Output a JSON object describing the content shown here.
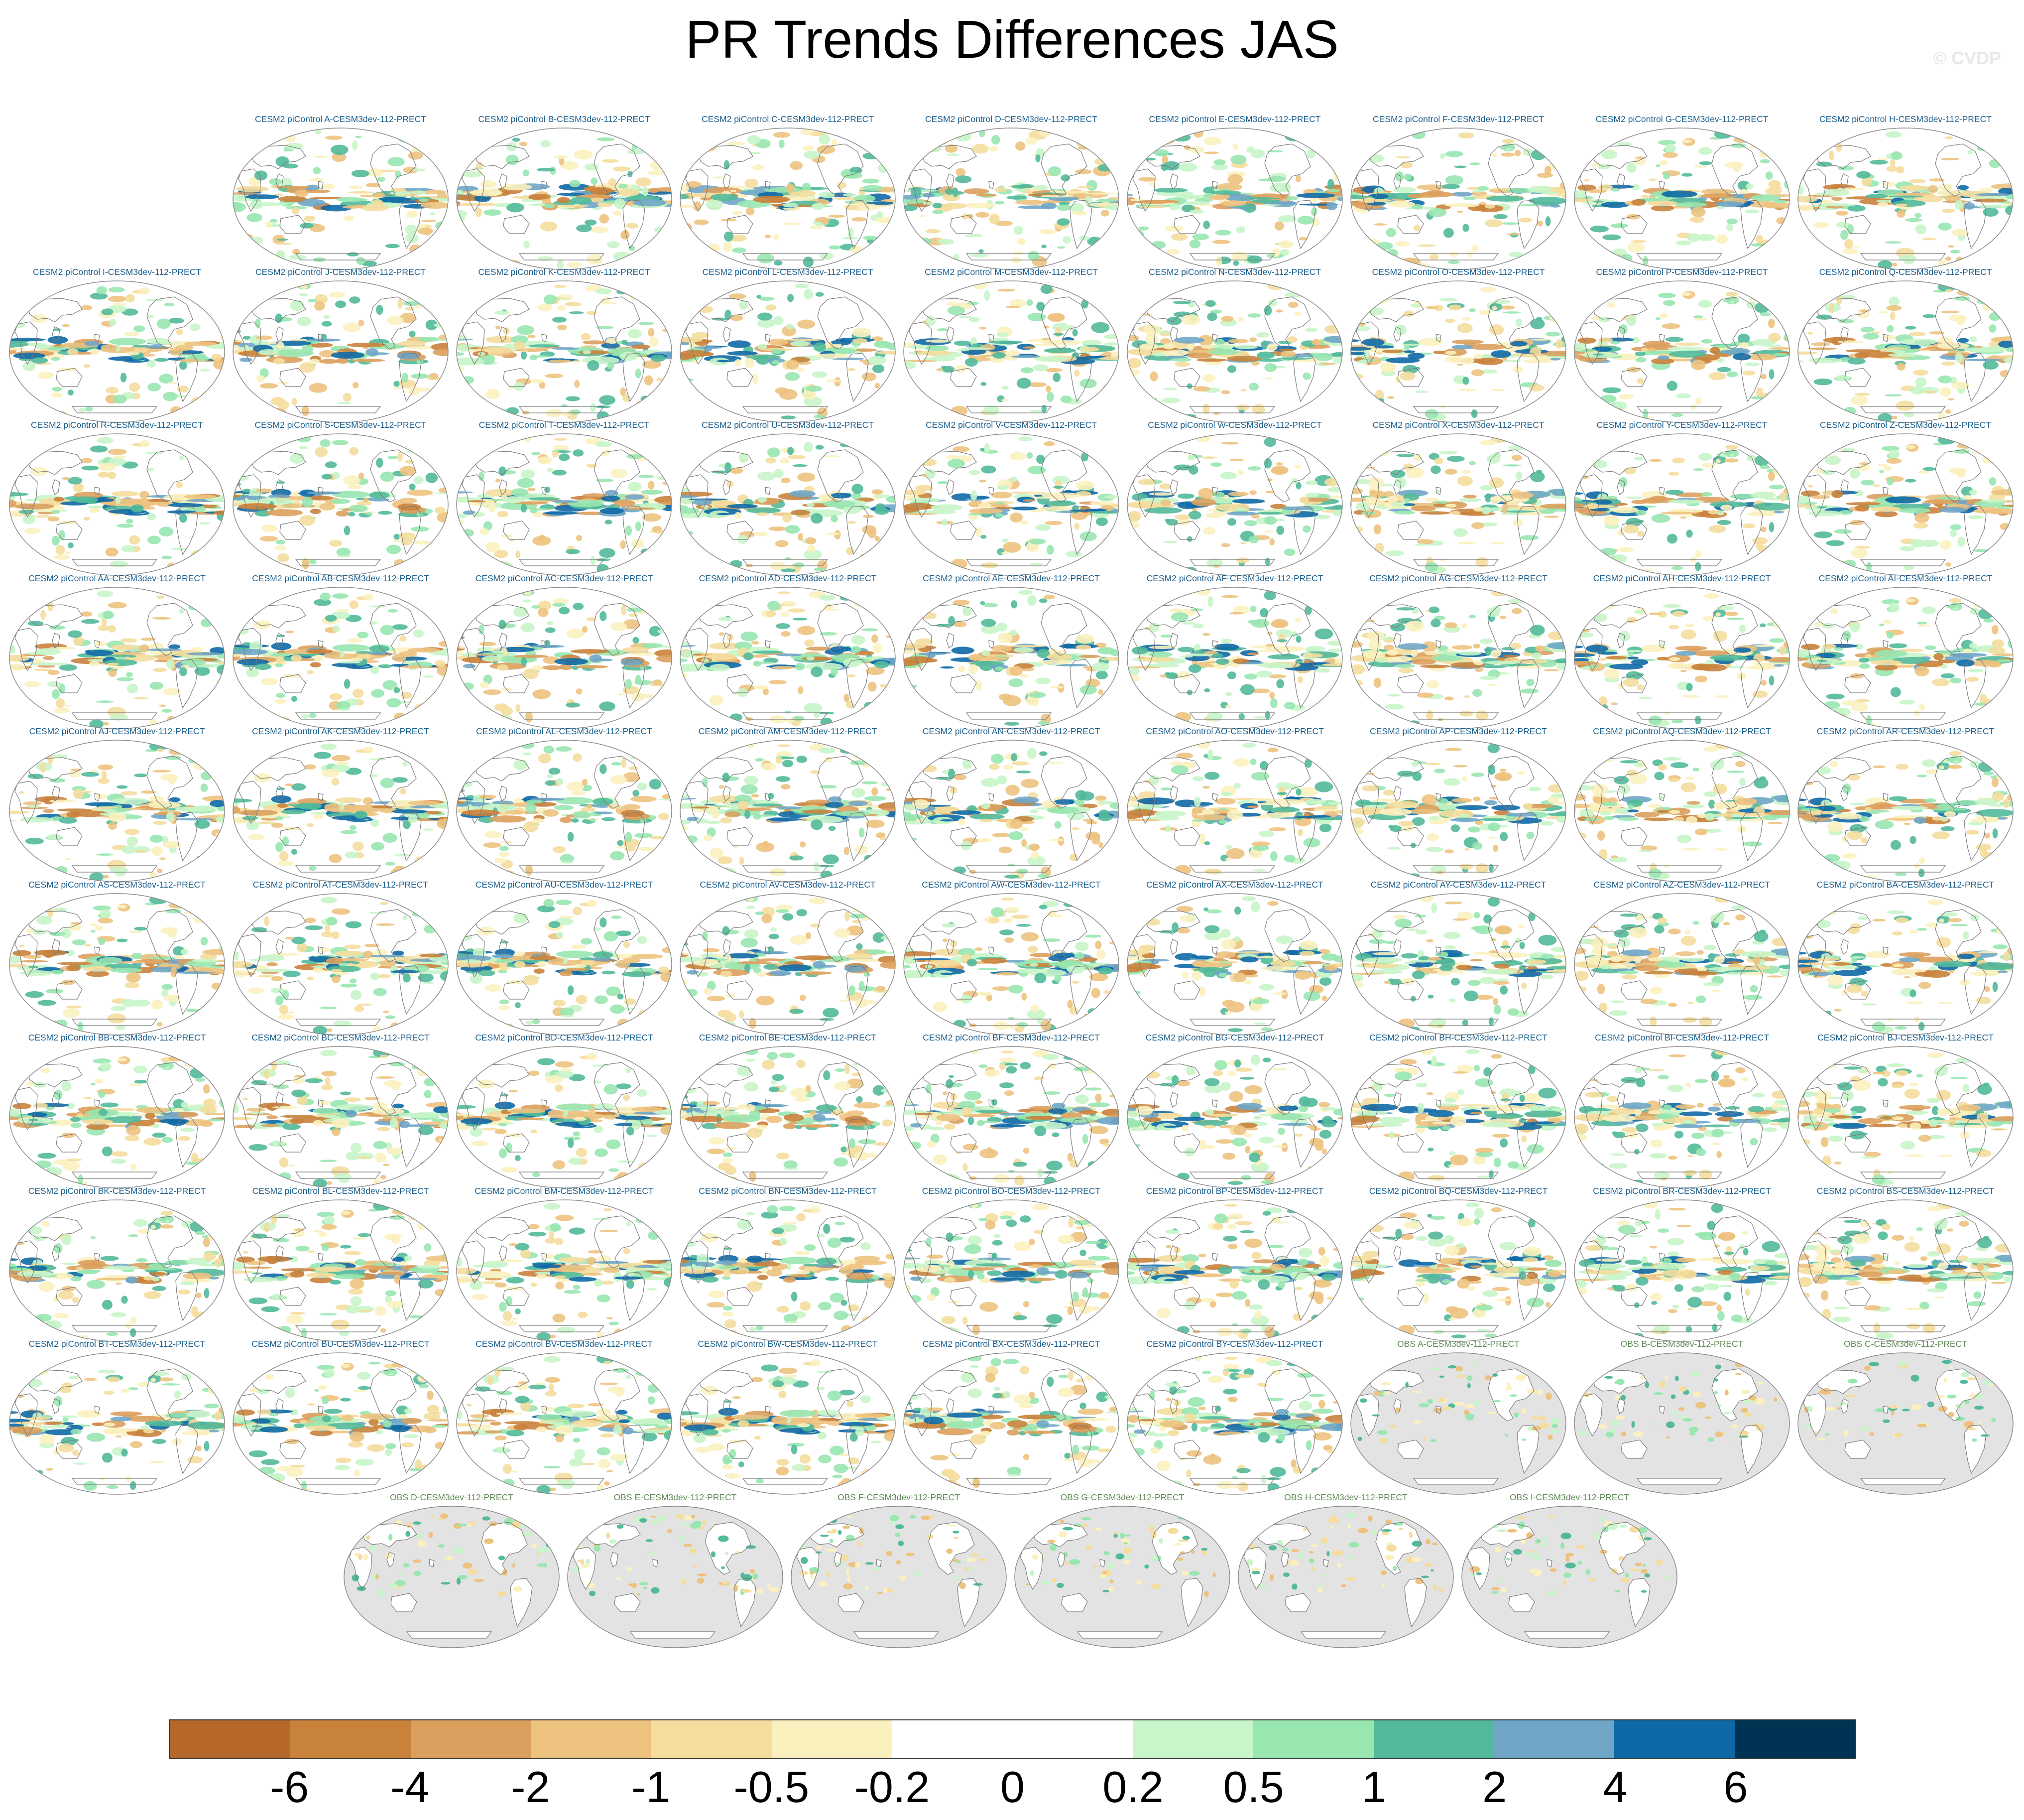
{
  "title": "PR Trends Differences JAS",
  "copyright": "© CVDP",
  "chart_data": {
    "type": "heatmap",
    "title": "PR Trends Differences JAS",
    "description_panels": "Grid of global map panels (Robinson-like projection) showing precipitation trend differences",
    "panels": [
      {
        "label": "CESM2 piControl A-CESM3dev-112-PRECT",
        "kind": "model"
      },
      {
        "label": "CESM2 piControl B-CESM3dev-112-PRECT",
        "kind": "model"
      },
      {
        "label": "CESM2 piControl C-CESM3dev-112-PRECT",
        "kind": "model"
      },
      {
        "label": "CESM2 piControl D-CESM3dev-112-PRECT",
        "kind": "model"
      },
      {
        "label": "CESM2 piControl E-CESM3dev-112-PRECT",
        "kind": "model"
      },
      {
        "label": "CESM2 piControl F-CESM3dev-112-PRECT",
        "kind": "model"
      },
      {
        "label": "CESM2 piControl G-CESM3dev-112-PRECT",
        "kind": "model"
      },
      {
        "label": "CESM2 piControl H-CESM3dev-112-PRECT",
        "kind": "model"
      },
      {
        "label": "CESM2 piControl I-CESM3dev-112-PRECT",
        "kind": "model"
      },
      {
        "label": "CESM2 piControl J-CESM3dev-112-PRECT",
        "kind": "model"
      },
      {
        "label": "CESM2 piControl K-CESM3dev-112-PRECT",
        "kind": "model"
      },
      {
        "label": "CESM2 piControl L-CESM3dev-112-PRECT",
        "kind": "model"
      },
      {
        "label": "CESM2 piControl M-CESM3dev-112-PRECT",
        "kind": "model"
      },
      {
        "label": "CESM2 piControl N-CESM3dev-112-PRECT",
        "kind": "model"
      },
      {
        "label": "CESM2 piControl O-CESM3dev-112-PRECT",
        "kind": "model"
      },
      {
        "label": "CESM2 piControl P-CESM3dev-112-PRECT",
        "kind": "model"
      },
      {
        "label": "CESM2 piControl Q-CESM3dev-112-PRECT",
        "kind": "model"
      },
      {
        "label": "CESM2 piControl R-CESM3dev-112-PRECT",
        "kind": "model"
      },
      {
        "label": "CESM2 piControl S-CESM3dev-112-PRECT",
        "kind": "model"
      },
      {
        "label": "CESM2 piControl T-CESM3dev-112-PRECT",
        "kind": "model"
      },
      {
        "label": "CESM2 piControl U-CESM3dev-112-PRECT",
        "kind": "model"
      },
      {
        "label": "CESM2 piControl V-CESM3dev-112-PRECT",
        "kind": "model"
      },
      {
        "label": "CESM2 piControl W-CESM3dev-112-PRECT",
        "kind": "model"
      },
      {
        "label": "CESM2 piControl X-CESM3dev-112-PRECT",
        "kind": "model"
      },
      {
        "label": "CESM2 piControl Y-CESM3dev-112-PRECT",
        "kind": "model"
      },
      {
        "label": "CESM2 piControl Z-CESM3dev-112-PRECT",
        "kind": "model"
      },
      {
        "label": "CESM2 piControl AA-CESM3dev-112-PRECT",
        "kind": "model"
      },
      {
        "label": "CESM2 piControl AB-CESM3dev-112-PRECT",
        "kind": "model"
      },
      {
        "label": "CESM2 piControl AC-CESM3dev-112-PRECT",
        "kind": "model"
      },
      {
        "label": "CESM2 piControl AD-CESM3dev-112-PRECT",
        "kind": "model"
      },
      {
        "label": "CESM2 piControl AE-CESM3dev-112-PRECT",
        "kind": "model"
      },
      {
        "label": "CESM2 piControl AF-CESM3dev-112-PRECT",
        "kind": "model"
      },
      {
        "label": "CESM2 piControl AG-CESM3dev-112-PRECT",
        "kind": "model"
      },
      {
        "label": "CESM2 piControl AH-CESM3dev-112-PRECT",
        "kind": "model"
      },
      {
        "label": "CESM2 piControl AI-CESM3dev-112-PRECT",
        "kind": "model"
      },
      {
        "label": "CESM2 piControl AJ-CESM3dev-112-PRECT",
        "kind": "model"
      },
      {
        "label": "CESM2 piControl AK-CESM3dev-112-PRECT",
        "kind": "model"
      },
      {
        "label": "CESM2 piControl AL-CESM3dev-112-PRECT",
        "kind": "model"
      },
      {
        "label": "CESM2 piControl AM-CESM3dev-112-PRECT",
        "kind": "model"
      },
      {
        "label": "CESM2 piControl AN-CESM3dev-112-PRECT",
        "kind": "model"
      },
      {
        "label": "CESM2 piControl AO-CESM3dev-112-PRECT",
        "kind": "model"
      },
      {
        "label": "CESM2 piControl AP-CESM3dev-112-PRECT",
        "kind": "model"
      },
      {
        "label": "CESM2 piControl AQ-CESM3dev-112-PRECT",
        "kind": "model"
      },
      {
        "label": "CESM2 piControl AR-CESM3dev-112-PRECT",
        "kind": "model"
      },
      {
        "label": "CESM2 piControl AS-CESM3dev-112-PRECT",
        "kind": "model"
      },
      {
        "label": "CESM2 piControl AT-CESM3dev-112-PRECT",
        "kind": "model"
      },
      {
        "label": "CESM2 piControl AU-CESM3dev-112-PRECT",
        "kind": "model"
      },
      {
        "label": "CESM2 piControl AV-CESM3dev-112-PRECT",
        "kind": "model"
      },
      {
        "label": "CESM2 piControl AW-CESM3dev-112-PRECT",
        "kind": "model"
      },
      {
        "label": "CESM2 piControl AX-CESM3dev-112-PRECT",
        "kind": "model"
      },
      {
        "label": "CESM2 piControl AY-CESM3dev-112-PRECT",
        "kind": "model"
      },
      {
        "label": "CESM2 piControl AZ-CESM3dev-112-PRECT",
        "kind": "model"
      },
      {
        "label": "CESM2 piControl BA-CESM3dev-112-PRECT",
        "kind": "model"
      },
      {
        "label": "CESM2 piControl BB-CESM3dev-112-PRECT",
        "kind": "model"
      },
      {
        "label": "CESM2 piControl BC-CESM3dev-112-PRECT",
        "kind": "model"
      },
      {
        "label": "CESM2 piControl BD-CESM3dev-112-PRECT",
        "kind": "model"
      },
      {
        "label": "CESM2 piControl BE-CESM3dev-112-PRECT",
        "kind": "model"
      },
      {
        "label": "CESM2 piControl BF-CESM3dev-112-PRECT",
        "kind": "model"
      },
      {
        "label": "CESM2 piControl BG-CESM3dev-112-PRECT",
        "kind": "model"
      },
      {
        "label": "CESM2 piControl BH-CESM3dev-112-PRECT",
        "kind": "model"
      },
      {
        "label": "CESM2 piControl BI-CESM3dev-112-PRECT",
        "kind": "model"
      },
      {
        "label": "CESM2 piControl BJ-CESM3dev-112-PRECT",
        "kind": "model"
      },
      {
        "label": "CESM2 piControl BK-CESM3dev-112-PRECT",
        "kind": "model"
      },
      {
        "label": "CESM2 piControl BL-CESM3dev-112-PRECT",
        "kind": "model"
      },
      {
        "label": "CESM2 piControl BM-CESM3dev-112-PRECT",
        "kind": "model"
      },
      {
        "label": "CESM2 piControl BN-CESM3dev-112-PRECT",
        "kind": "model"
      },
      {
        "label": "CESM2 piControl BO-CESM3dev-112-PRECT",
        "kind": "model"
      },
      {
        "label": "CESM2 piControl BP-CESM3dev-112-PRECT",
        "kind": "model"
      },
      {
        "label": "CESM2 piControl BQ-CESM3dev-112-PRECT",
        "kind": "model"
      },
      {
        "label": "CESM2 piControl BR-CESM3dev-112-PRECT",
        "kind": "model"
      },
      {
        "label": "CESM2 piControl BS-CESM3dev-112-PRECT",
        "kind": "model"
      },
      {
        "label": "CESM2 piControl BT-CESM3dev-112-PRECT",
        "kind": "model"
      },
      {
        "label": "CESM2 piControl BU-CESM3dev-112-PRECT",
        "kind": "model"
      },
      {
        "label": "CESM2 piControl BV-CESM3dev-112-PRECT",
        "kind": "model"
      },
      {
        "label": "CESM2 piControl BW-CESM3dev-112-PRECT",
        "kind": "model"
      },
      {
        "label": "CESM2 piControl BX-CESM3dev-112-PRECT",
        "kind": "model"
      },
      {
        "label": "CESM2 piControl BY-CESM3dev-112-PRECT",
        "kind": "model"
      },
      {
        "label": "OBS A-CESM3dev-112-PRECT",
        "kind": "obs"
      },
      {
        "label": "OBS B-CESM3dev-112-PRECT",
        "kind": "obs"
      },
      {
        "label": "OBS C-CESM3dev-112-PRECT",
        "kind": "obs"
      },
      {
        "label": "OBS D-CESM3dev-112-PRECT",
        "kind": "obs"
      },
      {
        "label": "OBS E-CESM3dev-112-PRECT",
        "kind": "obs"
      },
      {
        "label": "OBS F-CESM3dev-112-PRECT",
        "kind": "obs"
      },
      {
        "label": "OBS G-CESM3dev-112-PRECT",
        "kind": "obs"
      },
      {
        "label": "OBS H-CESM3dev-112-PRECT",
        "kind": "obs"
      },
      {
        "label": "OBS I-CESM3dev-112-PRECT",
        "kind": "obs"
      }
    ],
    "colorbar": {
      "ticks": [
        "-6",
        "-4",
        "-2",
        "-1",
        "-0.5",
        "-0.2",
        "0",
        "0.2",
        "0.5",
        "1",
        "2",
        "4",
        "6"
      ],
      "colors": [
        "#b5682a",
        "#c9823c",
        "#dba05e",
        "#edc27f",
        "#f4dd9d",
        "#fbf1bf",
        "#ffffff",
        "#ffffff",
        "#c8f5c9",
        "#98e6b0",
        "#52b99a",
        "#6fa6c8",
        "#0f69a6",
        "#003353"
      ]
    }
  }
}
